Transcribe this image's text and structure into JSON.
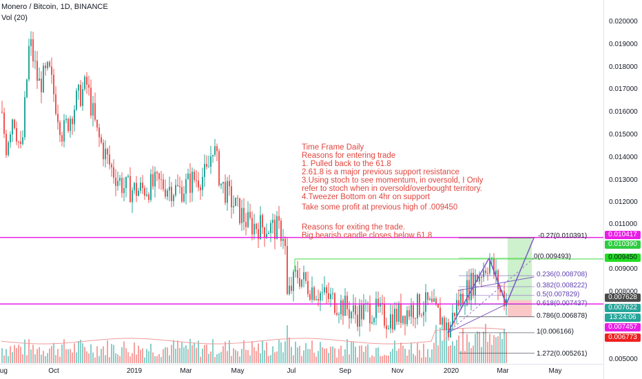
{
  "header": {
    "symbol": "Monero / Bitcoin, 1D, BINANCE",
    "indicator": "Vol (20)"
  },
  "price_axis": [
    "0.020000",
    "0.019000",
    "0.018000",
    "0.017000",
    "0.016000",
    "0.015000",
    "0.014000",
    "0.013000",
    "0.012000",
    "0.011000",
    "0.009000",
    "0.008000",
    "0.005000"
  ],
  "price_tags": {
    "magenta_top": "0.010417",
    "green_a": "0.010390",
    "green_b": "0.009450",
    "current": "0.007628",
    "teal_price": "0.007622",
    "countdown": "13:24:06",
    "magenta_low": "0.007457",
    "red_low": "0.006773"
  },
  "colors": {
    "up": "#26a69a",
    "down": "#ef5350",
    "magenta": "#e91ee6",
    "green_line": "#43d843",
    "purple": "#7e57c2",
    "note": "#e0453e"
  },
  "time_axis": [
    "Aug",
    "Oct",
    "2019",
    "Mar",
    "May",
    "Jul",
    "Sep",
    "Nov",
    "2020",
    "Mar",
    "May"
  ],
  "fib_levels": [
    "-0.27(0.010391)",
    "0(0.009493)",
    "0.236(0.008708)",
    "0.382(0.008222)",
    "0.5(0.007829)",
    "0.618(0.007437)",
    "0.786(0.006878)",
    "1(0.006166)",
    "1.272(0.005261)"
  ],
  "annotation": {
    "lines": [
      "Time Frame Daily",
      "Reasons for entering trade",
      "1. Pulled back to the 61.8",
      "2.61.8 is a major previous support resistance",
      "3.Using stoch to see momentum, in oversold, I Only",
      "refer to stoch when in oversold/overbought territory.",
      "4.Tweezer Bottom on 4hr on support",
      "",
      "Take some profit at previous high of .009450",
      "",
      "",
      "Reasons for exiting the trade.",
      "Big bearish candle closes below 61.8"
    ]
  }
}
